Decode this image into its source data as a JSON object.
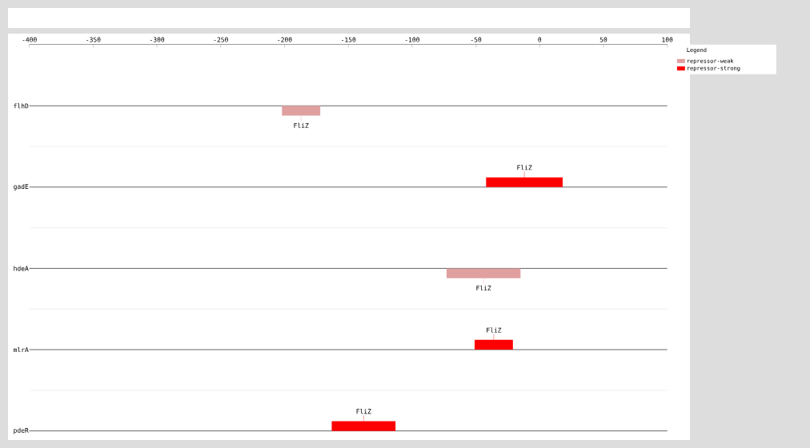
{
  "chart_data": {
    "type": "bar",
    "orientation": "horizontal",
    "categories": [
      "flhD",
      "gadE",
      "hdeA",
      "mlrA",
      "pdeR"
    ],
    "series": [
      {
        "name": "repressor-weak",
        "color": "#e0a0a0",
        "base": [
          -202,
          null,
          -73,
          null,
          null
        ],
        "values": [
          30,
          null,
          58,
          null,
          null
        ]
      },
      {
        "name": "repressor-strong",
        "color": "#ff0000",
        "base": [
          null,
          -42,
          null,
          -51,
          -163
        ],
        "values": [
          null,
          60,
          null,
          30,
          50
        ]
      }
    ],
    "xlim": [
      -400,
      100
    ],
    "xticks": [
      -400,
      -350,
      -300,
      -250,
      -200,
      -150,
      -100,
      -50,
      0,
      50,
      100
    ],
    "grid": "y",
    "legend": "top right",
    "legend_title": "Legend",
    "annotations": [
      {
        "text": "FliZ",
        "x": -187,
        "y": "flhD"
      },
      {
        "text": "FliZ",
        "x": -12,
        "y": "gadE"
      },
      {
        "text": "FliZ",
        "x": -44,
        "y": "hdeA"
      },
      {
        "text": "FliZ",
        "x": -36,
        "y": "mlrA"
      },
      {
        "text": "FliZ",
        "x": -138,
        "y": "pdeR"
      }
    ]
  }
}
